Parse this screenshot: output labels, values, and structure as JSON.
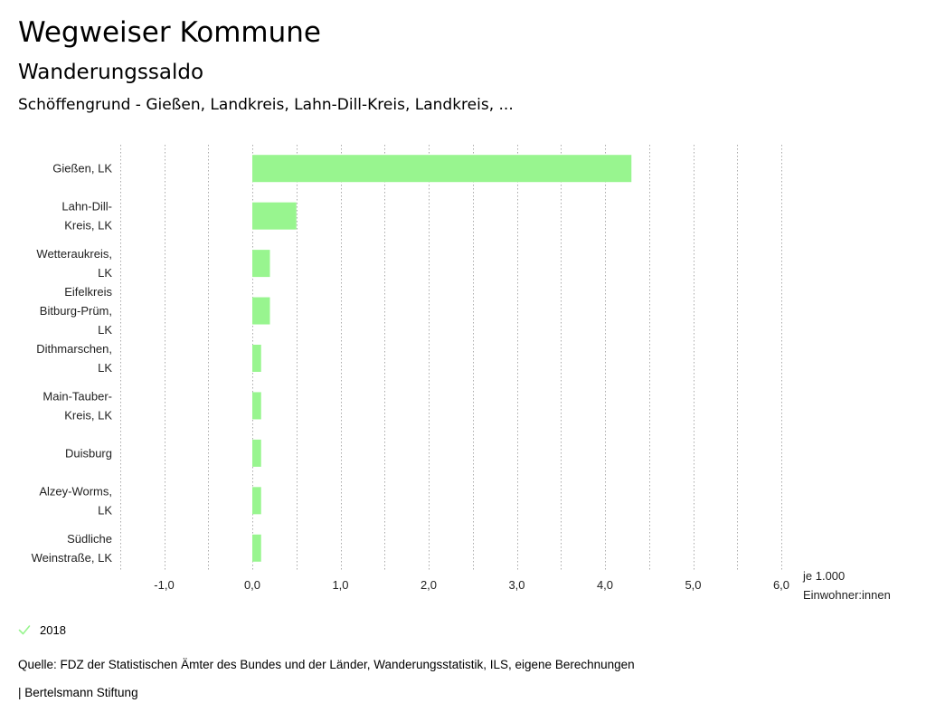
{
  "header": {
    "title": "Wegweiser Kommune",
    "subtitle": "Wanderungssaldo",
    "region": "Schöffengrund - Gießen, Landkreis, Lahn-Dill-Kreis, Landkreis, ..."
  },
  "chart_data": {
    "type": "bar",
    "orientation": "horizontal",
    "title": "Wanderungssaldo",
    "categories": [
      [
        "Gießen, LK"
      ],
      [
        "Lahn-Dill-",
        "Kreis, LK"
      ],
      [
        "Wetteraukreis,",
        "LK"
      ],
      [
        "Eifelkreis",
        "Bitburg-Prüm,",
        "LK"
      ],
      [
        "Dithmarschen,",
        "LK"
      ],
      [
        "Main-Tauber-",
        "Kreis, LK"
      ],
      [
        "Duisburg"
      ],
      [
        "Alzey-Worms,",
        "LK"
      ],
      [
        "Südliche",
        "Weinstraße, LK"
      ]
    ],
    "series": [
      {
        "name": "2018",
        "color": "#98f58f",
        "values": [
          4.3,
          0.5,
          0.2,
          0.2,
          0.1,
          0.1,
          0.1,
          0.1,
          0.1
        ]
      }
    ],
    "xlim": [
      -1.5,
      6.0
    ],
    "ticks": [
      -1.0,
      0.0,
      1.0,
      2.0,
      3.0,
      4.0,
      5.0,
      6.0
    ],
    "tick_labels": [
      "-1,0",
      "0,0",
      "1,0",
      "2,0",
      "3,0",
      "4,0",
      "5,0",
      "6,0"
    ],
    "unit_label": [
      "je 1.000",
      "Einwohner:innen"
    ],
    "grid": true,
    "grid_color": "#aaaaaa"
  },
  "legend": {
    "label": "2018",
    "color": "#98f58f"
  },
  "footer": {
    "source": "Quelle: FDZ der Statistischen Ämter des Bundes und der Länder, Wanderungsstatistik, ILS, eigene Berechnungen",
    "credit": "| Bertelsmann Stiftung"
  }
}
